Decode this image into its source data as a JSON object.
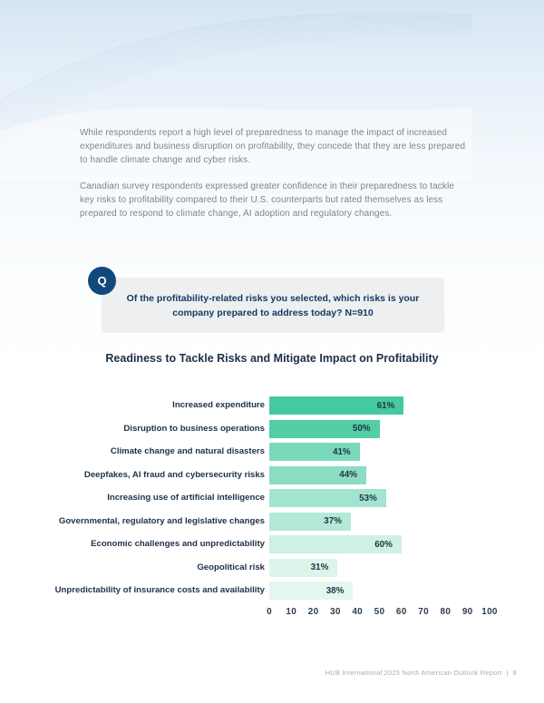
{
  "page": {
    "intro_paragraphs": [
      "While respondents report a high level of preparedness to manage the impact of increased expenditures and business disruption on profitability, they concede that they are less prepared to handle climate change and cyber risks.",
      "Canadian survey respondents expressed greater confidence in their preparedness to tackle key risks to profitability compared to their U.S. counterparts but rated themselves as less prepared to respond to climate change, AI adoption and regulatory changes."
    ],
    "question": {
      "icon_label": "Q",
      "text": "Of the profitability-related risks you selected, which risks is your company prepared to address today?  N=910"
    },
    "footer": {
      "text": "HUB International 2025 North American Outlook Report",
      "divider": "|",
      "page_number": "8"
    }
  },
  "chart_data": {
    "type": "bar",
    "orientation": "horizontal",
    "title": "Readiness to Tackle Risks and Mitigate Impact on Profitability",
    "categories": [
      "Increased expenditure",
      "Disruption to business operations",
      "Climate change and natural disasters",
      "Deepfakes, AI fraud and cybersecurity risks",
      "Increasing use of artificial intelligence",
      "Governmental, regulatory and legislative changes",
      "Economic challenges and unpredictability",
      "Geopolitical risk",
      "Unpredictability of insurance costs and availability"
    ],
    "values": [
      61,
      50,
      41,
      44,
      53,
      37,
      60,
      31,
      38
    ],
    "value_labels": [
      "61%",
      "50%",
      "41%",
      "44%",
      "53%",
      "37%",
      "60%",
      "31%",
      "38%"
    ],
    "bar_colors": [
      "#45c9a0",
      "#52cda6",
      "#7bd9bb",
      "#8bdcc3",
      "#a2e4cf",
      "#b4e9d7",
      "#cef1e4",
      "#dbf5eb",
      "#e3f7ef"
    ],
    "x_ticks": [
      0,
      10,
      20,
      30,
      40,
      50,
      60,
      70,
      80,
      90,
      100
    ],
    "xlim": [
      0,
      100
    ],
    "grid": false,
    "legend": false,
    "value_label_position": "inside-end"
  },
  "colors": {
    "header_gradient_top": "#d6e4f3",
    "heading_navy": "#1e3048",
    "body_text_gray": "#7d858c",
    "question_circle_navy": "#11497d",
    "question_box_bg": "#edeff1",
    "footer_gray": "#a9aeb2"
  }
}
